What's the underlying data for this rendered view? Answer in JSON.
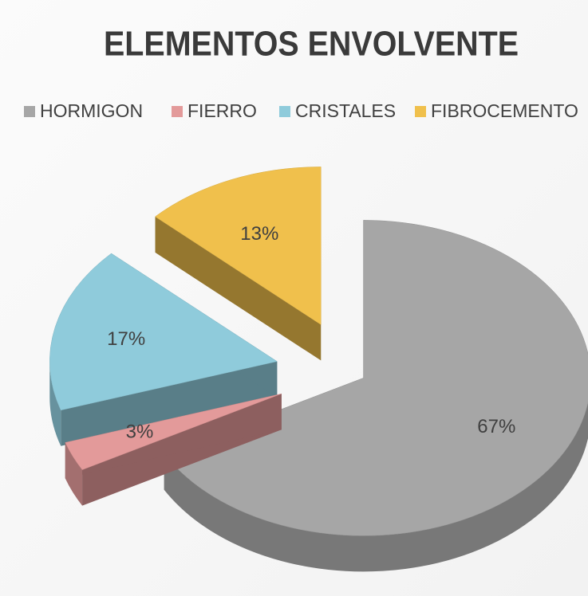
{
  "chart_data": {
    "type": "pie",
    "title": "ELEMENTOS ENVOLVENTE",
    "categories": [
      "HORMIGON",
      "FIERRO",
      "CRISTALES",
      "FIBROCEMENTO"
    ],
    "values": [
      67,
      3,
      17,
      13
    ],
    "value_labels": [
      "67%",
      "3%",
      "17%",
      "13%"
    ],
    "colors": [
      "#a6a6a6",
      "#e39a9a",
      "#8fcbdb",
      "#f0c04c"
    ],
    "legend": "top",
    "three_d": true
  }
}
